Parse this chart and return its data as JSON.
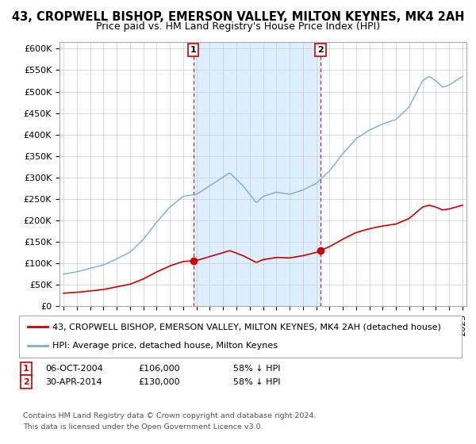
{
  "title": "43, CROPWELL BISHOP, EMERSON VALLEY, MILTON KEYNES, MK4 2AH",
  "subtitle": "Price paid vs. HM Land Registry's House Price Index (HPI)",
  "yticks": [
    0,
    50000,
    100000,
    150000,
    200000,
    250000,
    300000,
    350000,
    400000,
    450000,
    500000,
    550000,
    600000
  ],
  "ytick_labels": [
    "£0",
    "£50K",
    "£100K",
    "£150K",
    "£200K",
    "£250K",
    "£300K",
    "£350K",
    "£400K",
    "£450K",
    "£500K",
    "£550K",
    "£600K"
  ],
  "xlim_start": 1994.7,
  "xlim_end": 2025.3,
  "ylim": [
    0,
    615000
  ],
  "transaction1": {
    "date": "06-OCT-2004",
    "price": 106000,
    "label": "1",
    "year": 2004.77,
    "pct": "58%",
    "dir": "↓"
  },
  "transaction2": {
    "date": "30-APR-2014",
    "price": 130000,
    "label": "2",
    "year": 2014.33,
    "pct": "58%",
    "dir": "↓"
  },
  "legend_property": "43, CROPWELL BISHOP, EMERSON VALLEY, MILTON KEYNES, MK4 2AH (detached house)",
  "legend_hpi": "HPI: Average price, detached house, Milton Keynes",
  "property_color": "#cc0000",
  "hpi_color": "#7aadd4",
  "shade_color": "#ddeeff",
  "footnote1": "Contains HM Land Registry data © Crown copyright and database right 2024.",
  "footnote2": "This data is licensed under the Open Government Licence v3.0.",
  "background_color": "#ffffff",
  "grid_color": "#cccccc",
  "title_fontsize": 10.5,
  "subtitle_fontsize": 9,
  "tick_fontsize": 8,
  "legend_fontsize": 8,
  "annotation_fontsize": 8
}
